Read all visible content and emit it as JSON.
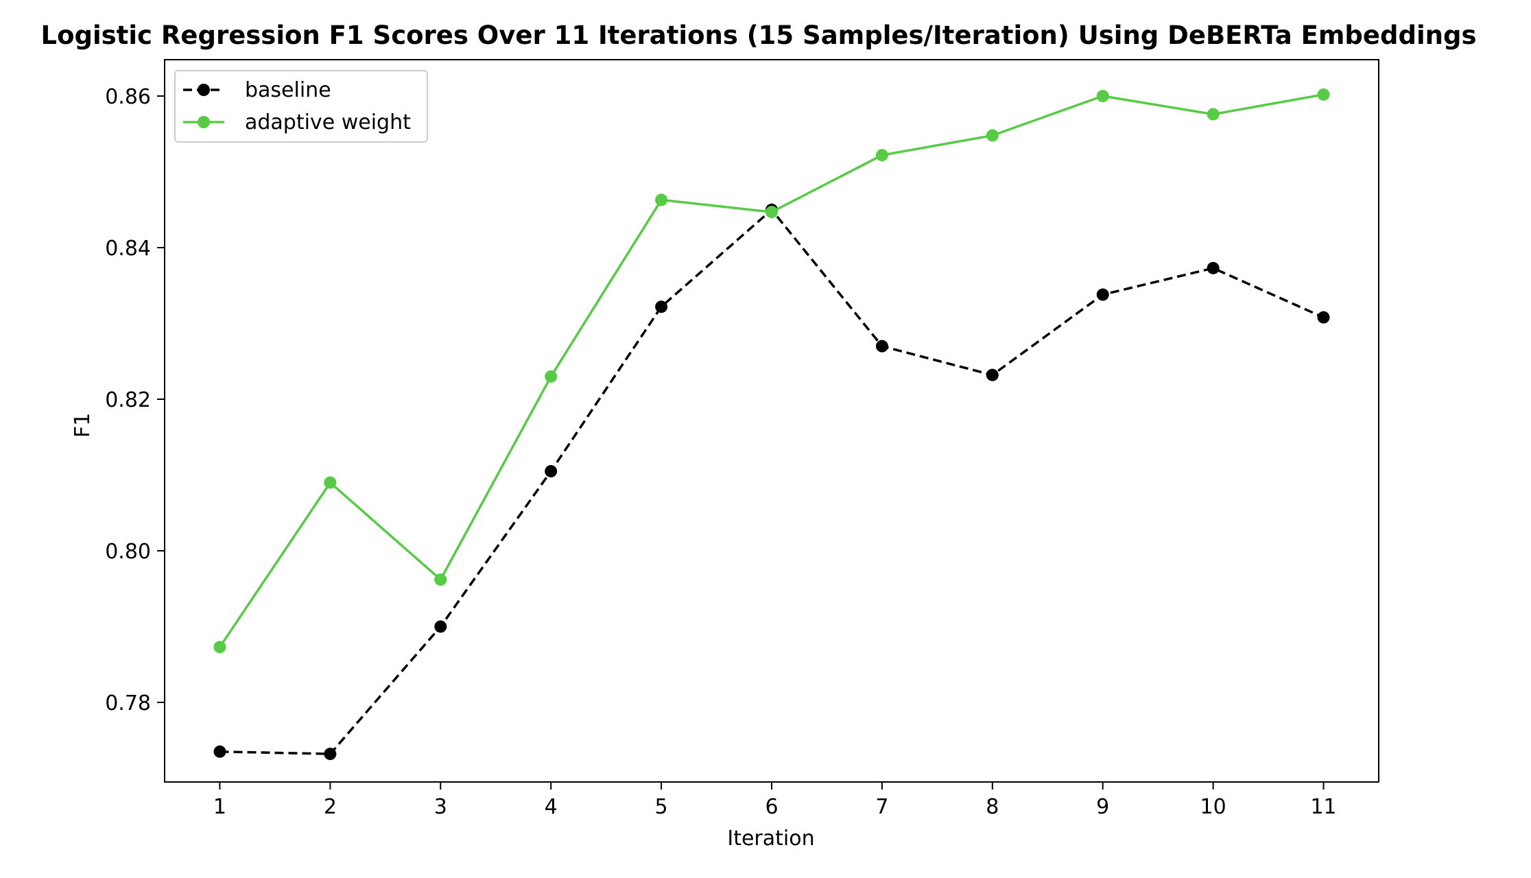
{
  "chart_data": {
    "type": "line",
    "title": "Logistic Regression F1 Scores Over 11 Iterations (15 Samples/Iteration) Using DeBERTa Embeddings",
    "xlabel": "Iteration",
    "ylabel": "F1",
    "x": [
      1,
      2,
      3,
      4,
      5,
      6,
      7,
      8,
      9,
      10,
      11
    ],
    "x_ticks": [
      "1",
      "2",
      "3",
      "4",
      "5",
      "6",
      "7",
      "8",
      "9",
      "10",
      "11"
    ],
    "y_ticks": [
      "0.78",
      "0.80",
      "0.82",
      "0.84",
      "0.86"
    ],
    "y_tick_values": [
      0.78,
      0.8,
      0.82,
      0.84,
      0.86
    ],
    "xlim": [
      0.5,
      11.5
    ],
    "ylim": [
      0.7695,
      0.8648
    ],
    "grid": false,
    "legend_position": "top-left",
    "series": [
      {
        "name": "baseline",
        "color": "#000000",
        "line_style": "dashed",
        "marker": "circle",
        "values": [
          0.7735,
          0.7732,
          0.79,
          0.8105,
          0.8322,
          0.845,
          0.827,
          0.8232,
          0.8338,
          0.8373,
          0.8308
        ]
      },
      {
        "name": "adaptive weight",
        "color": "#55cc44",
        "line_style": "solid",
        "marker": "circle",
        "values": [
          0.7873,
          0.809,
          0.7962,
          0.823,
          0.8463,
          0.8447,
          0.8522,
          0.8548,
          0.86,
          0.8576,
          0.8602
        ]
      }
    ]
  }
}
